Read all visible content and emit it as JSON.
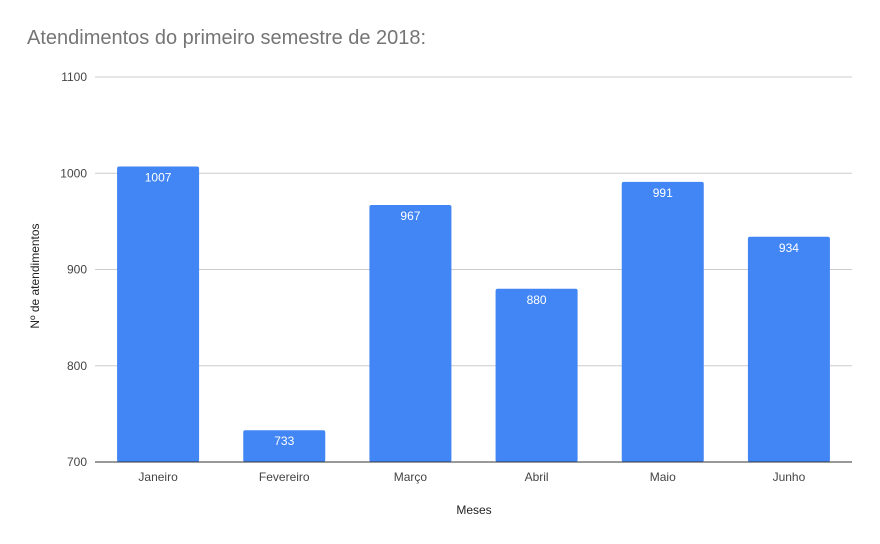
{
  "chart_data": {
    "type": "bar",
    "title": "Atendimentos do primeiro semestre de 2018:",
    "xlabel": "Meses",
    "ylabel": "Nº de atendimentos",
    "categories": [
      "Janeiro",
      "Fevereiro",
      "Março",
      "Abril",
      "Maio",
      "Junho"
    ],
    "values": [
      1007,
      733,
      967,
      880,
      991,
      934
    ],
    "ylim": [
      700,
      1100
    ],
    "yticks": [
      700,
      800,
      900,
      1000,
      1100
    ],
    "grid": true,
    "legend": "none",
    "bar_color": "#4285f4",
    "data_labels": true
  }
}
